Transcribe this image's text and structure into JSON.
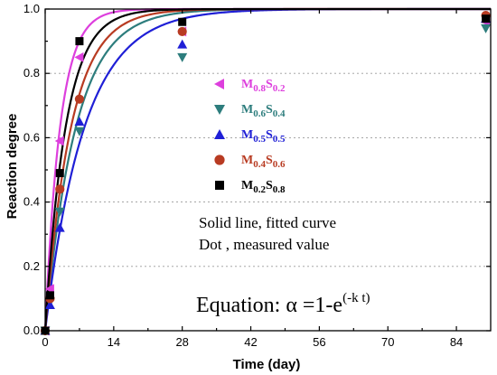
{
  "chart_data": {
    "type": "scatter",
    "title": "",
    "xlabel": "Time (day)",
    "ylabel": "Reaction degree",
    "xlim": [
      0,
      91
    ],
    "ylim": [
      0,
      1.0
    ],
    "x_ticks": [
      0,
      14,
      28,
      42,
      56,
      70,
      84
    ],
    "y_ticks": [
      0.0,
      0.2,
      0.4,
      0.6,
      0.8,
      1.0
    ],
    "y_tick_labels": [
      "0.0",
      "0.2",
      "0.4",
      "0.6",
      "0.8",
      "1.0"
    ],
    "grid": "horizontal dotted",
    "legend_position": "center-left",
    "series": [
      {
        "name": "M0.8S0.2",
        "name_parts": {
          "a": "M",
          "a_sub": "0.8",
          "b": "S",
          "b_sub": "0.2"
        },
        "marker": "triangle-left",
        "color": "#dd3fdd",
        "k": 0.33,
        "points": [
          [
            0,
            0.0
          ],
          [
            1,
            0.13
          ],
          [
            3,
            0.59
          ],
          [
            7,
            0.85
          ],
          [
            28,
            0.93
          ],
          [
            90,
            0.96
          ]
        ]
      },
      {
        "name": "M0.6S0.4",
        "name_parts": {
          "a": "M",
          "a_sub": "0.6",
          "b": "S",
          "b_sub": "0.4"
        },
        "marker": "triangle-down",
        "color": "#2d7d7d",
        "k": 0.16,
        "points": [
          [
            0,
            0.0
          ],
          [
            1,
            0.09
          ],
          [
            3,
            0.37
          ],
          [
            7,
            0.62
          ],
          [
            28,
            0.85
          ],
          [
            90,
            0.94
          ]
        ]
      },
      {
        "name": "M0.5S0.5",
        "name_parts": {
          "a": "M",
          "a_sub": "0.5",
          "b": "S",
          "b_sub": "0.5"
        },
        "marker": "triangle-up",
        "color": "#1f1fd6",
        "k": 0.125,
        "points": [
          [
            0,
            0.0
          ],
          [
            1,
            0.08
          ],
          [
            3,
            0.32
          ],
          [
            7,
            0.65
          ],
          [
            28,
            0.89
          ],
          [
            90,
            0.97
          ]
        ]
      },
      {
        "name": "M0.4S0.6",
        "name_parts": {
          "a": "M",
          "a_sub": "0.4",
          "b": "S",
          "b_sub": "0.6"
        },
        "marker": "circle",
        "color": "#b83b22",
        "k": 0.19,
        "points": [
          [
            0,
            0.0
          ],
          [
            1,
            0.1
          ],
          [
            3,
            0.44
          ],
          [
            7,
            0.72
          ],
          [
            28,
            0.93
          ],
          [
            90,
            0.98
          ]
        ]
      },
      {
        "name": "M0.2S0.8",
        "name_parts": {
          "a": "M",
          "a_sub": "0.2",
          "b": "S",
          "b_sub": "0.8"
        },
        "marker": "square",
        "color": "#000000",
        "k": 0.24,
        "points": [
          [
            0,
            0.0
          ],
          [
            1,
            0.11
          ],
          [
            3,
            0.49
          ],
          [
            7,
            0.9
          ],
          [
            28,
            0.96
          ],
          [
            90,
            0.97
          ]
        ]
      }
    ],
    "annotations": {
      "note_line1": "Solid line, fitted curve",
      "note_line2": "Dot , measured value",
      "equation_main": "Equation: α =1-e",
      "equation_exponent": "(-k t)"
    }
  }
}
